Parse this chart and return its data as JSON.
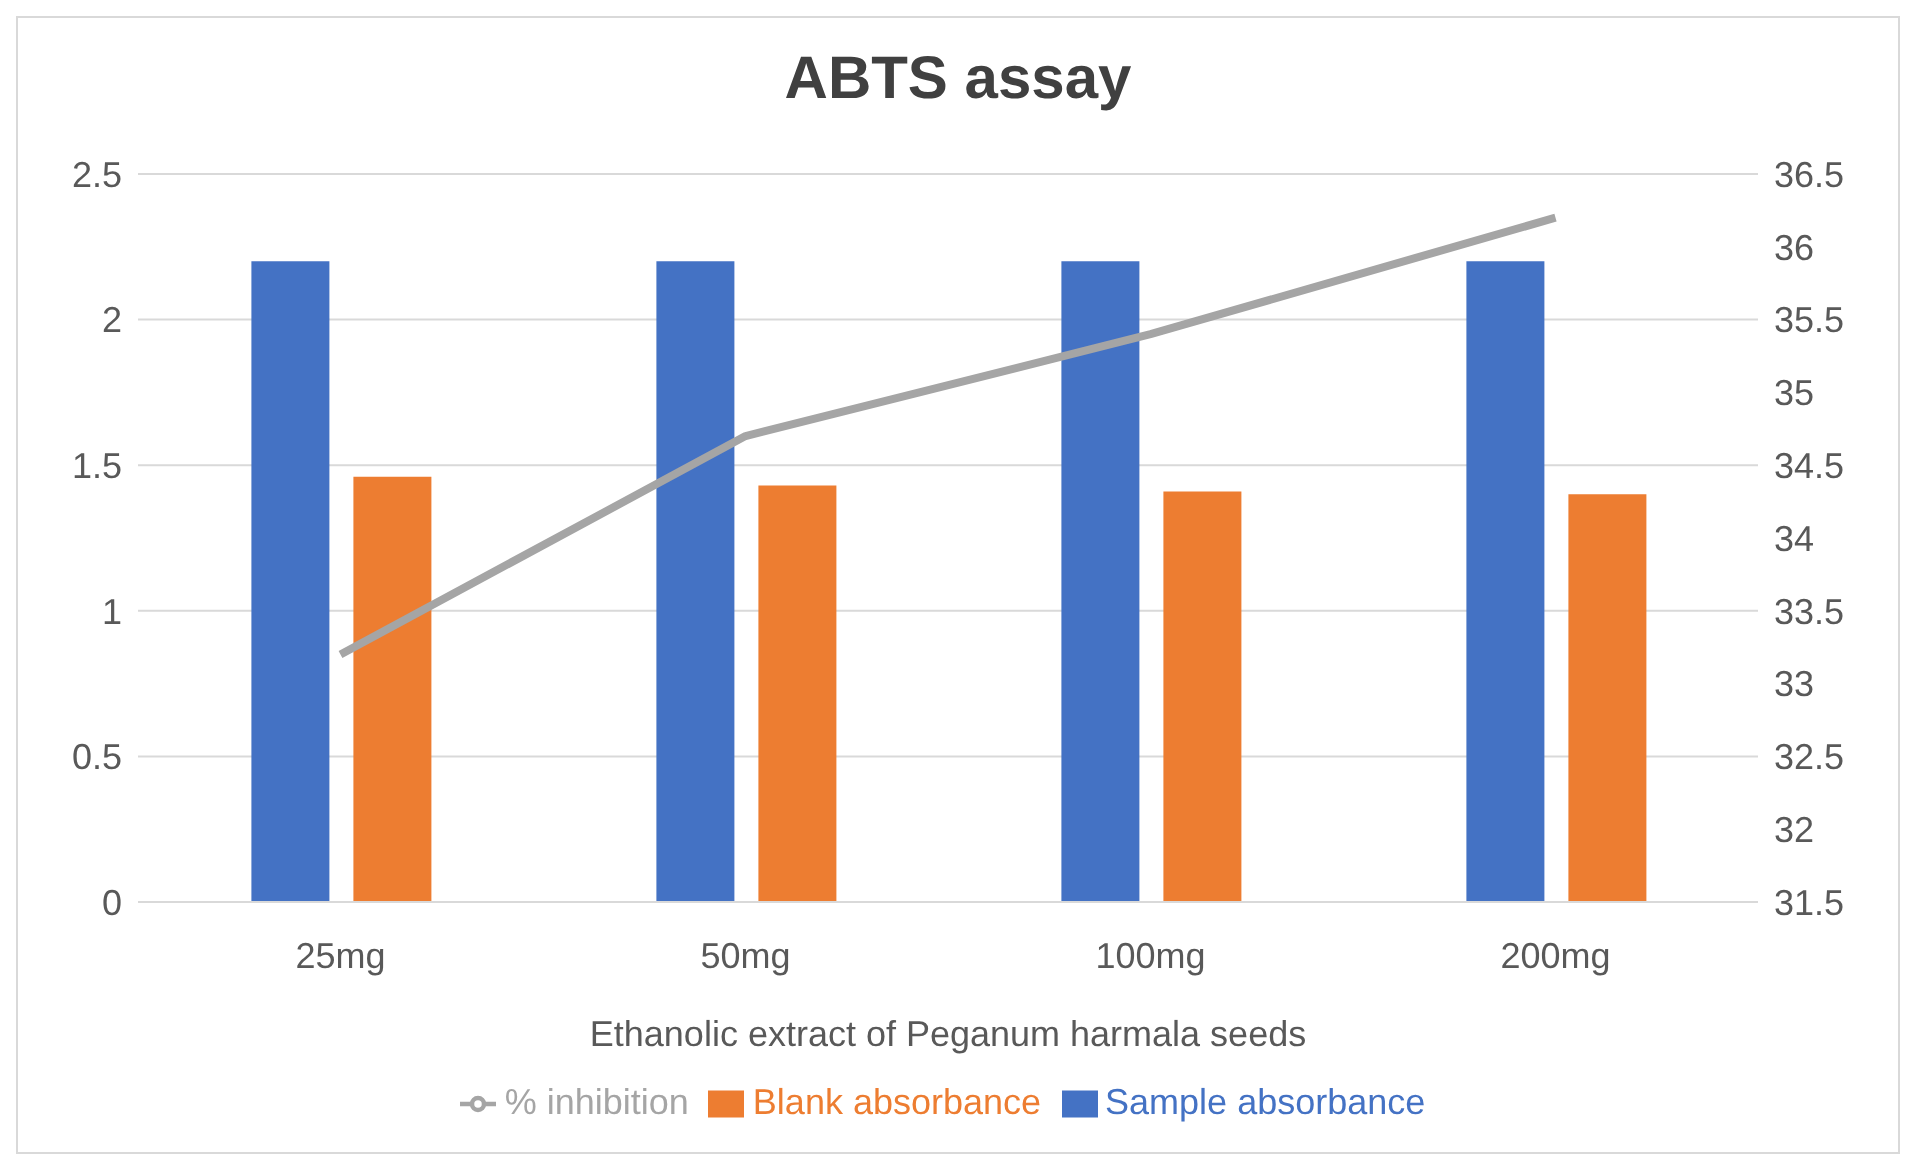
{
  "chart_data": {
    "type": "bar",
    "title": "ABTS assay",
    "xlabel": "Ethanolic extract of Peganum harmala seeds",
    "categories": [
      "25mg",
      "50mg",
      "100mg",
      "200mg"
    ],
    "series": [
      {
        "name": "Sample absorbance",
        "color": "#4472c4",
        "values": [
          2.2,
          2.2,
          2.2,
          2.2
        ]
      },
      {
        "name": "Blank absorbance",
        "color": "#ed7d31",
        "values": [
          1.46,
          1.43,
          1.41,
          1.4
        ]
      },
      {
        "name": "% inhibition",
        "type": "line",
        "axis": "y2",
        "color": "#a5a5a5",
        "values": [
          33.2,
          34.7,
          35.4,
          36.2
        ]
      }
    ],
    "ylim": [
      0,
      2.5
    ],
    "yticks": [
      0,
      0.5,
      1,
      1.5,
      2,
      2.5
    ],
    "y2lim": [
      31.5,
      36.5
    ],
    "y2ticks": [
      31.5,
      32,
      32.5,
      33,
      33.5,
      34,
      34.5,
      35,
      35.5,
      36,
      36.5
    ],
    "grid": "y",
    "legend": "bottom",
    "marker": "none",
    "line_style": "solid"
  }
}
